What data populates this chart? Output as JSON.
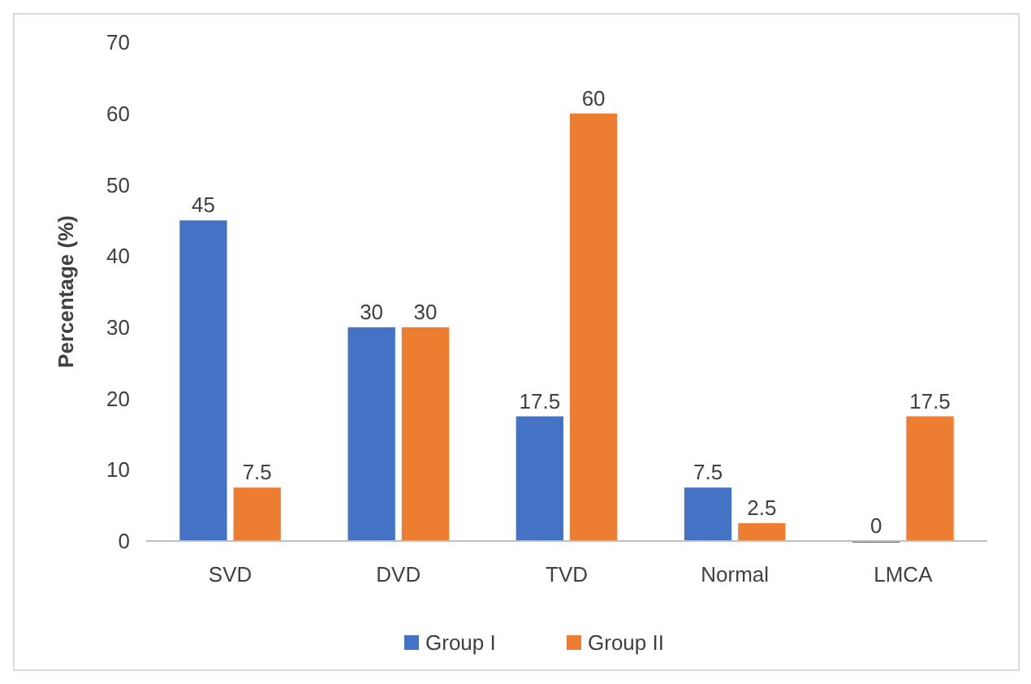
{
  "chart_data": {
    "type": "bar",
    "ylabel": "Percentage (%)",
    "categories": [
      "SVD",
      "DVD",
      "TVD",
      "Normal",
      "LMCA"
    ],
    "series": [
      {
        "name": "Group I",
        "color": "#4472c4",
        "values": [
          45,
          30,
          17.5,
          7.5,
          0
        ]
      },
      {
        "name": "Group II",
        "color": "#ed7d31",
        "values": [
          7.5,
          30,
          60,
          2.5,
          17.5
        ]
      }
    ],
    "ylim": [
      0,
      70
    ],
    "yticks": [
      0,
      10,
      20,
      30,
      40,
      50,
      60,
      70
    ],
    "grid": false,
    "legend": "bottom",
    "data_labels": true
  }
}
